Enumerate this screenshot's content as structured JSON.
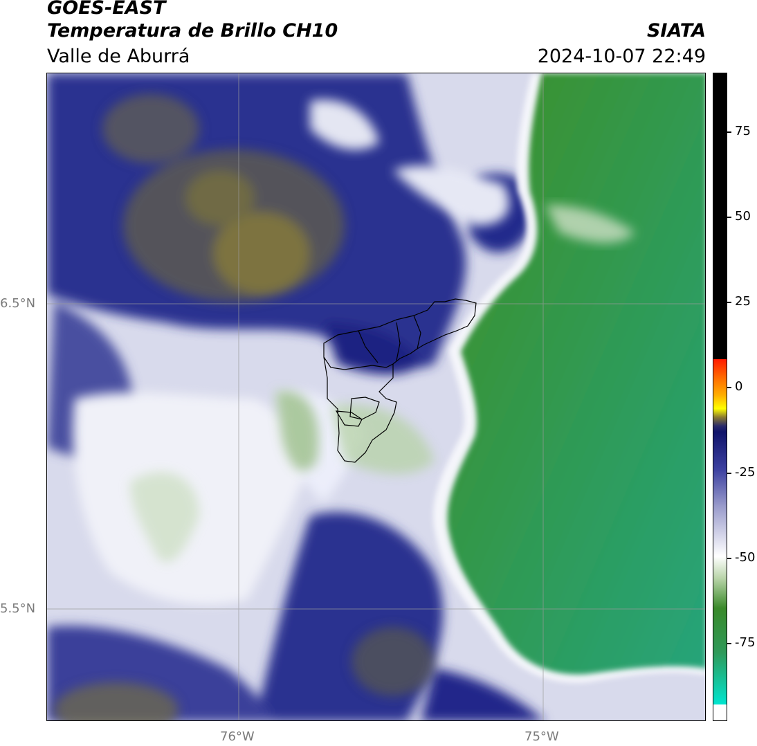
{
  "header": {
    "satellite": "GOES-EAST",
    "product": "Temperatura de Brillo CH10",
    "organization": "SIATA",
    "region": "Valle de Aburrá",
    "timestamp": "2024-10-07 22:49"
  },
  "map": {
    "lat_labels": [
      "6.5°N",
      "5.5°N"
    ],
    "lon_labels": [
      "76°W",
      "75°W"
    ],
    "colors": {
      "land_green": "#3a8a2a",
      "teal": "#2aa87a",
      "navy": "#1a1f7a",
      "white_cloud": "#f2f3f8",
      "olive": "#6e6b3a",
      "gridline": "#9a9a9a"
    }
  },
  "colorbar": {
    "ticks": [
      "75",
      "50",
      "25",
      "0",
      "-25",
      "-50",
      "-75"
    ],
    "colors": [
      "#000000",
      "#ff1a00",
      "#ff9a00",
      "#ffff00",
      "#1a1a6a",
      "#ffffff",
      "#2a8a2a",
      "#00e5d0"
    ]
  }
}
